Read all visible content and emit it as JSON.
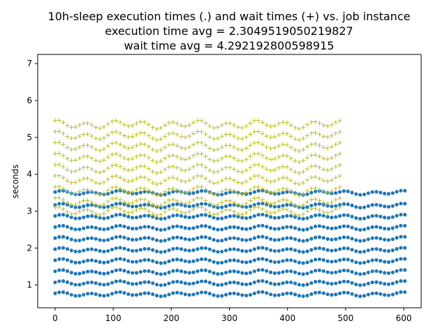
{
  "chart_data": {
    "type": "scatter",
    "title_lines": [
      "10h-sleep execution times (.) and wait times (+) vs. job instance",
      "execution time avg = 2.3049519050219827",
      "wait time avg = 4.292192800598915"
    ],
    "xlabel": "",
    "ylabel": "seconds",
    "xlim": [
      -30,
      630
    ],
    "ylim": [
      0.38,
      7.25
    ],
    "xticks": [
      0,
      100,
      200,
      300,
      400,
      500,
      600
    ],
    "yticks": [
      1,
      2,
      3,
      4,
      5,
      6,
      7
    ],
    "grid": false,
    "series": [
      {
        "marker": "dot",
        "color": "#1f77b4",
        "x_step": 7,
        "count": 87,
        "levels": [
          0.75,
          1.05,
          1.35,
          1.65,
          1.95,
          2.25,
          2.55,
          2.85,
          3.15,
          3.5
        ],
        "level_wave_amplitude": 0.04
      },
      {
        "marker": "plus",
        "color": "#bcbd22",
        "x_step": 7,
        "count": 71,
        "levels": [
          3.0,
          3.25,
          3.55,
          3.85,
          4.15,
          4.45,
          4.75,
          5.05,
          5.35
        ],
        "level_wave_amplitude": 0.08
      }
    ]
  }
}
